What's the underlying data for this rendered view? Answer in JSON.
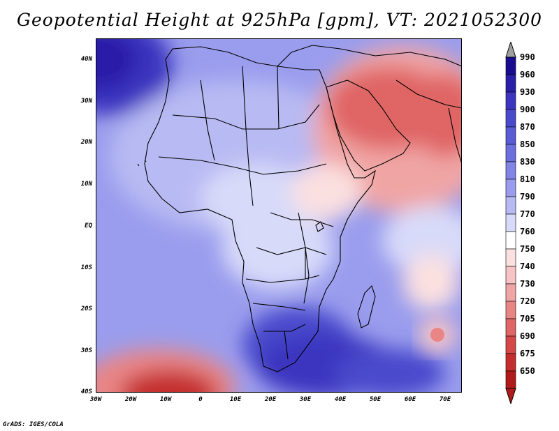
{
  "title": "Geopotential Height at 925hPa [gpm], VT: 2021052300",
  "credit": "GrADS: IGES/COLA",
  "map": {
    "lat_labels": [
      "40N",
      "30N",
      "20N",
      "10N",
      "EQ",
      "10S",
      "20S",
      "30S",
      "40S"
    ],
    "lon_labels": [
      "30W",
      "20W",
      "10W",
      "0",
      "10E",
      "20E",
      "30E",
      "40E",
      "50E",
      "60E",
      "70E"
    ],
    "region": "Africa, Arabian Peninsula and Indian Ocean",
    "lat_range": [
      -40,
      44
    ],
    "lon_range": [
      -30,
      75
    ]
  },
  "legend": {
    "levels": [
      "990",
      "960",
      "930",
      "900",
      "870",
      "850",
      "830",
      "810",
      "790",
      "770",
      "760",
      "750",
      "740",
      "730",
      "720",
      "705",
      "690",
      "675",
      "650"
    ],
    "colors": [
      "#1a0c8f",
      "#2a1fa8",
      "#3b35bf",
      "#4a4acc",
      "#5a5cd6",
      "#6c70de",
      "#8285e6",
      "#9a9ded",
      "#b8baf3",
      "#d8daf9",
      "#ffffff",
      "#fbe0e0",
      "#f6c4c4",
      "#f0a5a5",
      "#e98585",
      "#e06565",
      "#d44848",
      "#c52e2e",
      "#b01a1a"
    ],
    "arrow_top_color": "#a0a0a0",
    "arrow_bottom_color": "#b01a1a"
  }
}
